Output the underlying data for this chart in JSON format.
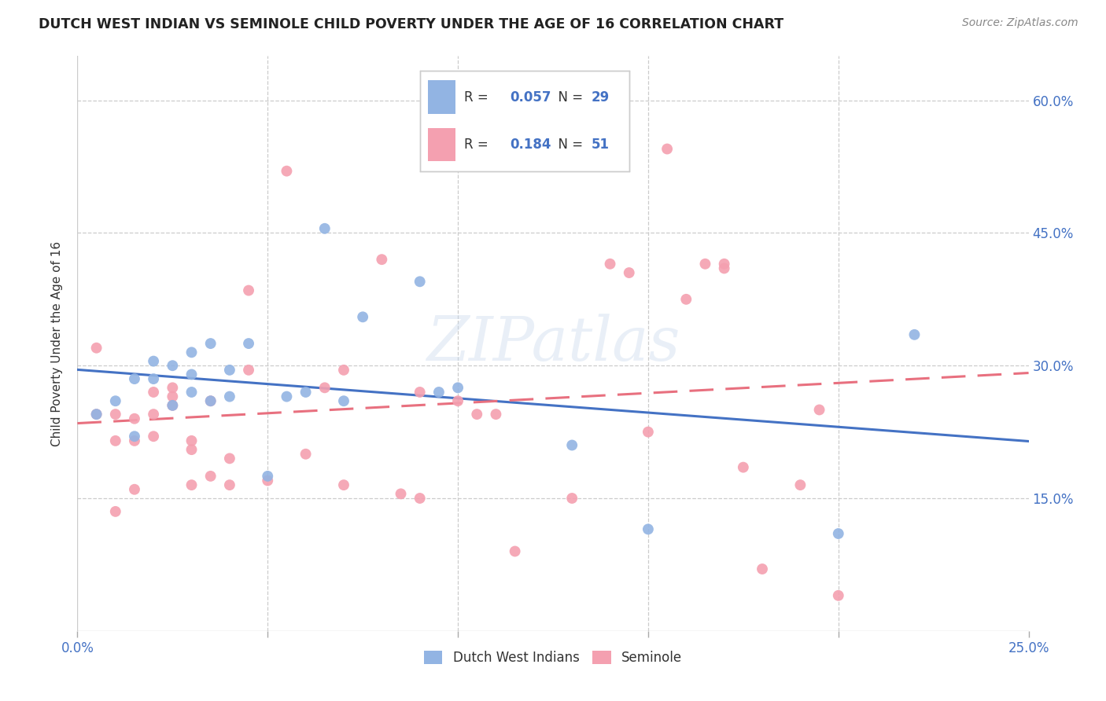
{
  "title": "DUTCH WEST INDIAN VS SEMINOLE CHILD POVERTY UNDER THE AGE OF 16 CORRELATION CHART",
  "source": "Source: ZipAtlas.com",
  "ylabel": "Child Poverty Under the Age of 16",
  "R_blue": 0.057,
  "N_blue": 29,
  "R_pink": 0.184,
  "N_pink": 51,
  "color_blue": "#92b4e3",
  "color_pink": "#f4a0b0",
  "line_color_blue": "#4472c4",
  "line_color_pink": "#e8707f",
  "watermark": "ZIPatlas",
  "xlim": [
    0.0,
    0.25
  ],
  "ylim": [
    0.0,
    0.65
  ],
  "x_tick_positions": [
    0.0,
    0.05,
    0.1,
    0.15,
    0.2,
    0.25
  ],
  "x_tick_labels": [
    "0.0%",
    "",
    "",
    "",
    "",
    "25.0%"
  ],
  "y_tick_positions": [
    0.0,
    0.15,
    0.3,
    0.45,
    0.6
  ],
  "y_tick_labels": [
    "",
    "15.0%",
    "30.0%",
    "45.0%",
    "60.0%"
  ],
  "blue_scatter_x": [
    0.005,
    0.01,
    0.015,
    0.015,
    0.02,
    0.02,
    0.025,
    0.025,
    0.03,
    0.03,
    0.03,
    0.035,
    0.035,
    0.04,
    0.04,
    0.045,
    0.05,
    0.055,
    0.06,
    0.065,
    0.07,
    0.075,
    0.09,
    0.095,
    0.1,
    0.13,
    0.15,
    0.2,
    0.22
  ],
  "blue_scatter_y": [
    0.245,
    0.26,
    0.285,
    0.22,
    0.285,
    0.305,
    0.3,
    0.255,
    0.27,
    0.29,
    0.315,
    0.325,
    0.26,
    0.265,
    0.295,
    0.325,
    0.175,
    0.265,
    0.27,
    0.455,
    0.26,
    0.355,
    0.395,
    0.27,
    0.275,
    0.21,
    0.115,
    0.11,
    0.335
  ],
  "pink_scatter_x": [
    0.005,
    0.005,
    0.01,
    0.01,
    0.01,
    0.015,
    0.015,
    0.015,
    0.02,
    0.02,
    0.02,
    0.025,
    0.025,
    0.025,
    0.03,
    0.03,
    0.03,
    0.035,
    0.035,
    0.04,
    0.04,
    0.045,
    0.045,
    0.05,
    0.055,
    0.06,
    0.065,
    0.07,
    0.07,
    0.08,
    0.085,
    0.09,
    0.09,
    0.1,
    0.105,
    0.11,
    0.115,
    0.13,
    0.14,
    0.145,
    0.15,
    0.155,
    0.16,
    0.165,
    0.17,
    0.17,
    0.175,
    0.18,
    0.19,
    0.195,
    0.2
  ],
  "pink_scatter_y": [
    0.245,
    0.32,
    0.135,
    0.215,
    0.245,
    0.16,
    0.215,
    0.24,
    0.27,
    0.245,
    0.22,
    0.265,
    0.275,
    0.255,
    0.215,
    0.165,
    0.205,
    0.26,
    0.175,
    0.195,
    0.165,
    0.385,
    0.295,
    0.17,
    0.52,
    0.2,
    0.275,
    0.165,
    0.295,
    0.42,
    0.155,
    0.27,
    0.15,
    0.26,
    0.245,
    0.245,
    0.09,
    0.15,
    0.415,
    0.405,
    0.225,
    0.545,
    0.375,
    0.415,
    0.415,
    0.41,
    0.185,
    0.07,
    0.165,
    0.25,
    0.04
  ]
}
